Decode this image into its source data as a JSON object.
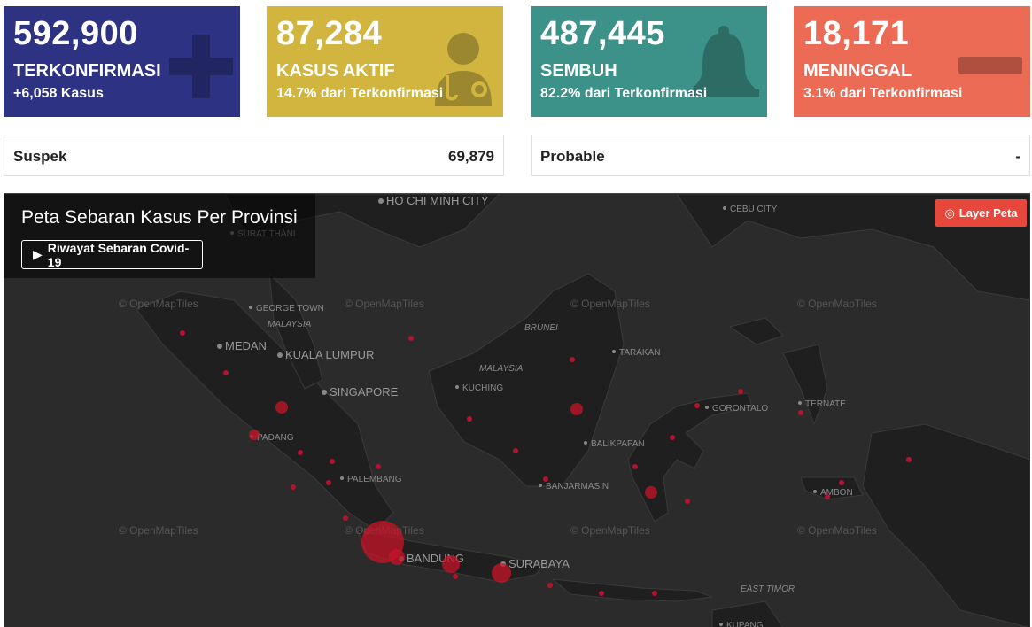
{
  "stats": [
    {
      "number": "592,900",
      "title": "TERKONFIRMASI",
      "sub": "+6,058 Kasus",
      "color": "#2d3283",
      "icon": "plus-icon"
    },
    {
      "number": "87,284",
      "title": "KASUS AKTIF",
      "sub": "14.7% dari Terkonfirmasi",
      "color": "#d1b53f",
      "icon": "doctor-icon"
    },
    {
      "number": "487,445",
      "title": "SEMBUH",
      "sub": "82.2% dari Terkonfirmasi",
      "color": "#3c9188",
      "icon": "bell-icon"
    },
    {
      "number": "18,171",
      "title": "MENINGGAL",
      "sub": "3.1% dari Terkonfirmasi",
      "color": "#eb6b55",
      "icon": "minus-icon"
    }
  ],
  "extra": {
    "suspek_label": "Suspek",
    "suspek_value": "69,879",
    "probable_label": "Probable",
    "probable_value": "-"
  },
  "map": {
    "title": "Peta Sebaran Kasus Per Provinsi",
    "history_button": "Riwayat Sebaran Covid-19",
    "layer_button": "Layer Peta",
    "attribution": "© OpenMapTiles",
    "labels": [
      {
        "text": "HO CHI MINH CITY",
        "size": "big"
      },
      {
        "text": "SURAT THANI",
        "size": "small"
      },
      {
        "text": "CEBU CITY",
        "size": "small"
      },
      {
        "text": "GEORGE TOWN",
        "size": "small"
      },
      {
        "text": "MALAYSIA",
        "size": "italic"
      },
      {
        "text": "MEDAN",
        "size": "big"
      },
      {
        "text": "KUALA LUMPUR",
        "size": "big"
      },
      {
        "text": "SINGAPORE",
        "size": "big"
      },
      {
        "text": "BRUNEI",
        "size": "italic"
      },
      {
        "text": "TARAKAN",
        "size": "small"
      },
      {
        "text": "MALAYSIA",
        "size": "italic"
      },
      {
        "text": "KUCHING",
        "size": "small"
      },
      {
        "text": "GORONTALO",
        "size": "small"
      },
      {
        "text": "TERNATE",
        "size": "small"
      },
      {
        "text": "PADANG",
        "size": "small"
      },
      {
        "text": "BALIKPAPAN",
        "size": "small"
      },
      {
        "text": "PALEMBANG",
        "size": "small"
      },
      {
        "text": "BANJARMASIN",
        "size": "small"
      },
      {
        "text": "AMBON",
        "size": "small"
      },
      {
        "text": "BANDUNG",
        "size": "big"
      },
      {
        "text": "SURABAYA",
        "size": "big"
      },
      {
        "text": "EAST TIMOR",
        "size": "italic"
      },
      {
        "text": "KUPANG",
        "size": "small"
      }
    ]
  }
}
